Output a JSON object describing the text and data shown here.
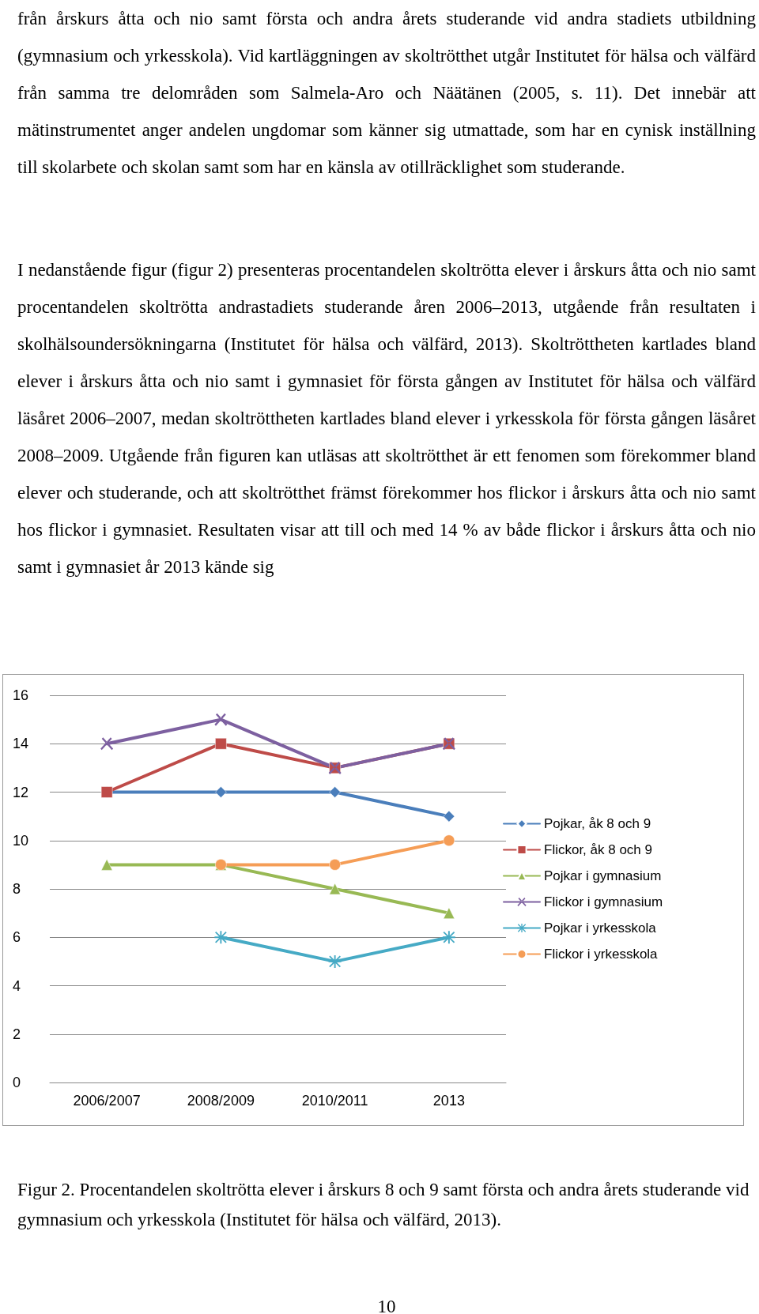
{
  "chart_data": {
    "type": "line",
    "categories": [
      "2006/2007",
      "2008/2009",
      "2010/2011",
      "2013"
    ],
    "series": [
      {
        "name": "Pojkar, åk 8 och 9",
        "color": "#4a7ebb",
        "marker": "diamond",
        "values": [
          12,
          12,
          12,
          11
        ]
      },
      {
        "name": "Flickor, åk 8 och 9",
        "color": "#be4b48",
        "marker": "square",
        "values": [
          12,
          14,
          13,
          14
        ]
      },
      {
        "name": "Pojkar i gymnasium",
        "color": "#98b954",
        "marker": "triangle",
        "values": [
          9,
          9,
          8,
          7
        ]
      },
      {
        "name": "Flickor i gymnasium",
        "color": "#7d60a0",
        "marker": "cross",
        "values": [
          14,
          15,
          13,
          14
        ]
      },
      {
        "name": "Pojkar i yrkesskola",
        "color": "#46aac5",
        "marker": "star",
        "values": [
          null,
          6,
          5,
          6
        ]
      },
      {
        "name": "Flickor i yrkesskola",
        "color": "#f59d56",
        "marker": "circle",
        "values": [
          null,
          9,
          9,
          10
        ]
      }
    ],
    "ylim": [
      0,
      16
    ],
    "yticks": [
      0,
      2,
      4,
      6,
      8,
      10,
      12,
      14,
      16
    ],
    "grid": "y",
    "legend": "right",
    "line_style": "solid",
    "annotations": [
      "från årskurs åtta och nio samt första och andra årets studerande vid andra stadiets utbildning (gymnasium och yrkesskola). Vid kartläggningen av skoltrötthet utgår Institutet för hälsa och välfärd från samma tre delområden som Salmela-Aro och Näätänen (2005, s. 11). Det innebär att mätinstrumentet anger andelen ungdomar som känner sig utmattade, som har en cynisk inställning till skolarbete och skolan samt som har en känsla av otillräcklighet som studerande.",
      "I nedanstående figur (figur 2) presenteras procentandelen skoltrötta elever i årskurs åtta och nio samt procentandelen skoltrötta andrastadiets studerande åren 2006–2013, utgående från resultaten i skolhälsoundersökningarna (Institutet för hälsa och välfärd, 2013). Skoltröttheten kartlades bland elever i årskurs åtta och nio samt i gymnasiet för första gången av Institutet för hälsa och välfärd läsåret 2006–2007, medan skoltröttheten kartlades bland elever i yrkesskola för första gången läsåret 2008–2009. Utgående från figuren kan utläsas att skoltrötthet är ett fenomen som förekommer bland elever och studerande, och att skoltrötthet främst förekommer hos flickor i årskurs åtta och nio samt hos flickor i gymnasiet. Resultaten visar att till och med 14 % av både flickor i årskurs åtta och nio samt i gymnasiet år 2013 kände sig",
      "Figur 2. Procentandelen skoltrötta elever i årskurs 8 och 9 samt första och andra årets studerande vid gymnasium och yrkesskola (Institutet för hälsa och välfärd, 2013).",
      "10"
    ]
  }
}
